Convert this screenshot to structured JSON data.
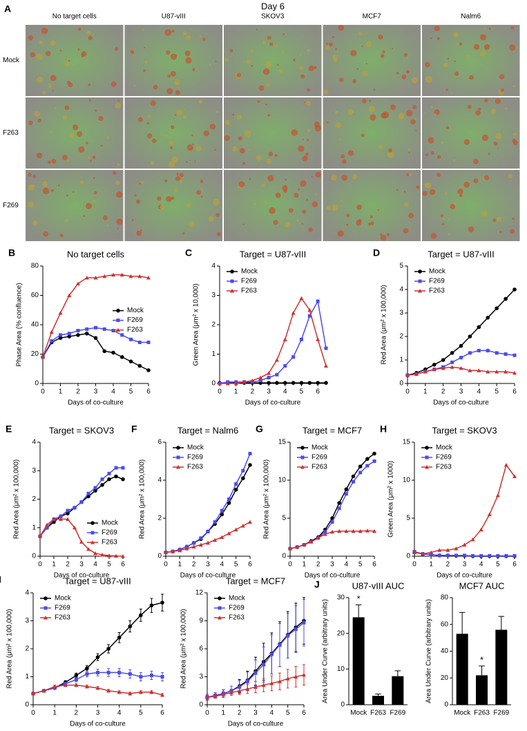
{
  "panel_a": {
    "panel_label": "A",
    "title": "Day 6",
    "columns": [
      "No target cells",
      "U87-vIII",
      "SKOV3",
      "MCF7",
      "Nalm6"
    ],
    "rows": [
      "Mock",
      "F263",
      "F269"
    ]
  },
  "chart_data": [
    {
      "type": "line",
      "panel_label": "B",
      "title": "No target cells",
      "xlabel": "Days of co-culture",
      "ylabel": "Phase Area (% confluence)",
      "x": [
        0,
        0.5,
        1,
        1.5,
        2,
        2.5,
        3,
        3.5,
        4,
        4.5,
        5,
        5.5,
        6
      ],
      "xlim": [
        0,
        6
      ],
      "xticks": [
        0,
        1,
        2,
        3,
        4,
        5,
        6
      ],
      "ylim": [
        0,
        80
      ],
      "yticks": [
        0,
        20,
        40,
        60,
        80
      ],
      "legend": "right",
      "series": [
        {
          "name": "Mock",
          "color": "#000000",
          "values": [
            18,
            28,
            31,
            32,
            33,
            34,
            31,
            22,
            21,
            18,
            15,
            12,
            9
          ]
        },
        {
          "name": "F269",
          "color": "#4b4bf0",
          "values": [
            18,
            29,
            33,
            34,
            36,
            37,
            38,
            37,
            36,
            33,
            30,
            28,
            28
          ]
        },
        {
          "name": "F263",
          "color": "#d03030",
          "values": [
            18,
            35,
            48,
            60,
            68,
            72,
            72,
            73,
            74,
            74,
            73,
            73,
            72
          ]
        }
      ]
    },
    {
      "type": "line",
      "panel_label": "C",
      "title": "Target = U87-vIII",
      "xlabel": "Days of co-culture",
      "ylabel": "Green Area (μm² x 10,000)",
      "x": [
        0,
        0.5,
        1,
        1.5,
        2,
        2.5,
        3,
        3.5,
        4,
        4.5,
        5,
        5.5,
        6,
        6.5
      ],
      "xlim": [
        0,
        6.5
      ],
      "xticks": [
        0,
        1,
        2,
        3,
        4,
        5,
        6
      ],
      "ylim": [
        0,
        4
      ],
      "yticks": [
        0,
        1,
        2,
        3,
        4
      ],
      "legend": "upper left",
      "series": [
        {
          "name": "Mock",
          "color": "#000000",
          "values": [
            0.02,
            0.02,
            0.02,
            0.02,
            0.02,
            0.02,
            0.02,
            0.02,
            0.02,
            0.02,
            0.02,
            0.02,
            0.02,
            0.02
          ]
        },
        {
          "name": "F269",
          "color": "#4b4bf0",
          "values": [
            0,
            0.05,
            0.05,
            0.05,
            0.05,
            0.1,
            0.2,
            0.3,
            0.6,
            0.9,
            1.5,
            2.3,
            2.8,
            1.2
          ]
        },
        {
          "name": "F263",
          "color": "#d03030",
          "values": [
            0,
            0,
            0,
            0.05,
            0.1,
            0.2,
            0.35,
            0.8,
            1.5,
            2.4,
            2.9,
            2.5,
            1.5,
            0.6
          ]
        }
      ]
    },
    {
      "type": "line",
      "panel_label": "D",
      "title": "Target = U87-vIII",
      "xlabel": "Days of co-culture",
      "ylabel": "Red Area (μm² x 100,000)",
      "x": [
        0,
        0.5,
        1,
        1.5,
        2,
        2.5,
        3,
        3.5,
        4,
        4.5,
        5,
        5.5,
        6
      ],
      "xlim": [
        0,
        6
      ],
      "xticks": [
        0,
        1,
        2,
        3,
        4,
        5,
        6
      ],
      "ylim": [
        0,
        5
      ],
      "yticks": [
        0,
        1,
        2,
        3,
        4,
        5
      ],
      "legend": "upper left",
      "series": [
        {
          "name": "Mock",
          "color": "#000000",
          "values": [
            0.35,
            0.45,
            0.6,
            0.8,
            1.0,
            1.3,
            1.6,
            2.0,
            2.4,
            2.8,
            3.2,
            3.6,
            4.0
          ]
        },
        {
          "name": "F269",
          "color": "#4b4bf0",
          "values": [
            0.35,
            0.4,
            0.5,
            0.6,
            0.7,
            0.9,
            1.1,
            1.3,
            1.4,
            1.4,
            1.3,
            1.25,
            1.2
          ]
        },
        {
          "name": "F263",
          "color": "#d03030",
          "values": [
            0.35,
            0.4,
            0.5,
            0.6,
            0.65,
            0.7,
            0.65,
            0.55,
            0.55,
            0.5,
            0.5,
            0.5,
            0.45
          ]
        }
      ]
    },
    {
      "type": "line",
      "panel_label": "E",
      "title": "Target = SKOV3",
      "xlabel": "Days of co-culture",
      "ylabel": "Red Area (μm² x 100,000)",
      "x": [
        0,
        0.5,
        1,
        1.5,
        2,
        2.5,
        3,
        3.5,
        4,
        4.5,
        5,
        5.5,
        6
      ],
      "xlim": [
        0,
        6
      ],
      "xticks": [
        0,
        1,
        2,
        3,
        4,
        5,
        6
      ],
      "ylim": [
        0,
        4
      ],
      "yticks": [
        0,
        1,
        2,
        3,
        4
      ],
      "legend": "lower right",
      "series": [
        {
          "name": "Mock",
          "color": "#000000",
          "values": [
            0.7,
            1.0,
            1.2,
            1.4,
            1.5,
            1.7,
            1.9,
            2.1,
            2.3,
            2.5,
            2.7,
            2.8,
            2.7
          ]
        },
        {
          "name": "F269",
          "color": "#4b4bf0",
          "values": [
            0.7,
            1.0,
            1.3,
            1.4,
            1.6,
            1.7,
            1.9,
            2.2,
            2.4,
            2.7,
            2.9,
            3.1,
            3.1
          ]
        },
        {
          "name": "F263",
          "color": "#d03030",
          "values": [
            0.7,
            1.1,
            1.3,
            1.3,
            1.3,
            1.0,
            0.5,
            0.25,
            0.1,
            0.05,
            0.02,
            0.01,
            0
          ]
        }
      ]
    },
    {
      "type": "line",
      "panel_label": "F",
      "title": "Target = Nalm6",
      "xlabel": "Days of co-culture",
      "ylabel": "Red Area (μm² x 100,000)",
      "x": [
        0,
        0.5,
        1,
        1.5,
        2,
        2.5,
        3,
        3.5,
        4,
        4.5,
        5,
        5.5,
        6
      ],
      "xlim": [
        0,
        6
      ],
      "xticks": [
        0,
        1,
        2,
        3,
        4,
        5,
        6
      ],
      "ylim": [
        0,
        6
      ],
      "yticks": [
        0,
        2,
        4,
        6
      ],
      "legend": "upper left",
      "series": [
        {
          "name": "Mock",
          "color": "#000000",
          "values": [
            0.2,
            0.25,
            0.35,
            0.5,
            0.7,
            0.9,
            1.3,
            1.7,
            2.2,
            2.8,
            3.5,
            4.1,
            4.8
          ]
        },
        {
          "name": "F269",
          "color": "#4b4bf0",
          "values": [
            0.2,
            0.25,
            0.35,
            0.5,
            0.7,
            0.95,
            1.3,
            1.8,
            2.4,
            3.0,
            3.8,
            4.5,
            5.4
          ]
        },
        {
          "name": "F263",
          "color": "#d03030",
          "values": [
            0.2,
            0.25,
            0.3,
            0.4,
            0.5,
            0.6,
            0.7,
            0.85,
            1.0,
            1.2,
            1.4,
            1.6,
            1.8
          ]
        }
      ]
    },
    {
      "type": "line",
      "panel_label": "G",
      "title": "Target = MCF7",
      "xlabel": "Days of co-culture",
      "ylabel": "Red Area (μm² x 100,000)",
      "x": [
        0,
        0.5,
        1,
        1.5,
        2,
        2.5,
        3,
        3.5,
        4,
        4.5,
        5,
        5.5,
        6
      ],
      "xlim": [
        0,
        6
      ],
      "xticks": [
        0,
        1,
        2,
        3,
        4,
        5,
        6
      ],
      "ylim": [
        0,
        15
      ],
      "yticks": [
        0,
        5,
        10,
        15
      ],
      "legend": "upper left",
      "series": [
        {
          "name": "Mock",
          "color": "#000000",
          "values": [
            1,
            1.2,
            1.5,
            2,
            2.5,
            3.5,
            5,
            7,
            8.8,
            10.5,
            11.8,
            12.8,
            13.5
          ]
        },
        {
          "name": "F269",
          "color": "#4b4bf0",
          "values": [
            1,
            1.2,
            1.5,
            1.9,
            2.4,
            3.2,
            4.5,
            6.3,
            8.2,
            9.8,
            11,
            11.9,
            12.5
          ]
        },
        {
          "name": "F263",
          "color": "#d03030",
          "values": [
            1,
            1.2,
            1.5,
            1.9,
            2.4,
            2.9,
            3.2,
            3.3,
            3.3,
            3.3,
            3.3,
            3.35,
            3.3
          ]
        }
      ]
    },
    {
      "type": "line",
      "panel_label": "H",
      "title": "Target = SKOV3",
      "xlabel": "Days of co-culture",
      "ylabel": "Green Area (μm² x 1000)",
      "x": [
        0,
        0.5,
        1,
        1.5,
        2,
        2.5,
        3,
        3.5,
        4,
        4.5,
        5,
        5.5,
        6
      ],
      "xlim": [
        0,
        6
      ],
      "xticks": [
        0,
        1,
        2,
        3,
        4,
        5,
        6
      ],
      "ylim": [
        0,
        15
      ],
      "yticks": [
        0,
        5,
        10,
        15
      ],
      "legend": "upper left",
      "series": [
        {
          "name": "Mock",
          "color": "#000000",
          "values": [
            0.5,
            0.3,
            0.2,
            0.1,
            0.1,
            0.05,
            0.05,
            0,
            0,
            0,
            0,
            0,
            0
          ]
        },
        {
          "name": "F269",
          "color": "#4b4bf0",
          "values": [
            0.6,
            0.3,
            0.2,
            0.1,
            0.1,
            0.1,
            0.1,
            0.05,
            0.05,
            0.05,
            0.05,
            0.05,
            0.05
          ]
        },
        {
          "name": "F263",
          "color": "#d03030",
          "values": [
            0.5,
            0.3,
            0.5,
            0.8,
            0.8,
            1.0,
            1.5,
            2.2,
            3.5,
            5.5,
            8,
            12,
            10.5
          ]
        }
      ]
    },
    {
      "type": "line",
      "panel_label": "I",
      "title": "Target = U87-vIII",
      "xlabel": "Days of co-culture",
      "ylabel": "Red Area (μm² x 100,000)",
      "x": [
        0,
        0.5,
        1,
        1.5,
        2,
        2.5,
        3,
        3.5,
        4,
        4.5,
        5,
        5.5,
        6
      ],
      "xlim": [
        0,
        6
      ],
      "xticks": [
        0,
        1,
        2,
        3,
        4,
        5,
        6
      ],
      "ylim": [
        0,
        4
      ],
      "yticks": [
        0,
        1,
        2,
        3,
        4
      ],
      "legend": "upper left",
      "series": [
        {
          "name": "Mock",
          "color": "#000000",
          "values": [
            0.4,
            0.5,
            0.6,
            0.8,
            1.05,
            1.3,
            1.7,
            2.0,
            2.4,
            2.8,
            3.2,
            3.55,
            3.65
          ],
          "errors": [
            0.03,
            0.03,
            0.04,
            0.06,
            0.08,
            0.1,
            0.12,
            0.15,
            0.18,
            0.2,
            0.22,
            0.25,
            0.3
          ]
        },
        {
          "name": "F269",
          "color": "#4b4bf0",
          "values": [
            0.4,
            0.5,
            0.6,
            0.75,
            0.9,
            1.1,
            1.15,
            1.15,
            1.15,
            1.1,
            1.0,
            1.05,
            1.0
          ],
          "errors": [
            0.03,
            0.03,
            0.05,
            0.06,
            0.08,
            0.1,
            0.12,
            0.14,
            0.15,
            0.15,
            0.15,
            0.15,
            0.15
          ]
        },
        {
          "name": "F263",
          "color": "#d03030",
          "values": [
            0.4,
            0.5,
            0.65,
            0.7,
            0.7,
            0.65,
            0.6,
            0.5,
            0.45,
            0.4,
            0.45,
            0.45,
            0.35
          ],
          "errors": [
            0.03,
            0.03,
            0.05,
            0.05,
            0.05,
            0.05,
            0.05,
            0.05,
            0.05,
            0.05,
            0.05,
            0.05,
            0.05
          ]
        }
      ]
    },
    {
      "type": "line",
      "title": "Target = MCF7",
      "xlabel": "Days of co-culture",
      "ylabel": "Red Area (μm² x 100,000)",
      "x": [
        0,
        0.5,
        1,
        1.5,
        2,
        2.5,
        3,
        3.5,
        4,
        4.5,
        5,
        5.5,
        6
      ],
      "xlim": [
        0,
        6
      ],
      "xticks": [
        0,
        1,
        2,
        3,
        4,
        5,
        6
      ],
      "ylim": [
        0,
        12
      ],
      "yticks": [
        0,
        3,
        6,
        9,
        12
      ],
      "legend": "upper left",
      "series": [
        {
          "name": "Mock",
          "color": "#000000",
          "values": [
            0.8,
            1,
            1.2,
            1.5,
            2,
            2.6,
            3.6,
            4.6,
            5.5,
            6.5,
            7.5,
            8.3,
            9
          ],
          "errors": [
            0.3,
            0.3,
            0.4,
            0.5,
            0.7,
            1,
            1.5,
            2,
            2.2,
            2.4,
            2.5,
            2.6,
            2.5
          ]
        },
        {
          "name": "F269",
          "color": "#4b4bf0",
          "values": [
            0.8,
            1,
            1.2,
            1.5,
            1.9,
            2.5,
            3.4,
            4.3,
            5.4,
            6.4,
            7.4,
            8.1,
            8.8
          ],
          "errors": [
            0.3,
            0.3,
            0.4,
            0.5,
            0.7,
            1,
            1.4,
            1.9,
            2.1,
            2.3,
            2.4,
            2.5,
            2.5
          ]
        },
        {
          "name": "F263",
          "color": "#d03030",
          "values": [
            0.8,
            0.9,
            1.1,
            1.3,
            1.5,
            1.7,
            1.9,
            2.1,
            2.3,
            2.5,
            2.8,
            3.0,
            3.2
          ],
          "errors": [
            0.2,
            0.2,
            0.3,
            0.3,
            0.4,
            0.5,
            0.6,
            0.7,
            0.8,
            0.9,
            1,
            1.1,
            1.1
          ]
        }
      ]
    },
    {
      "type": "bar",
      "panel_label": "J",
      "title": "U87-vIII AUC",
      "ylabel": "Area Under Curve (arbitrary units)",
      "categories": [
        "Mock",
        "F263",
        "F269"
      ],
      "values": [
        24.5,
        2.5,
        8
      ],
      "errors": [
        3.5,
        0.5,
        1.5
      ],
      "annotations": [
        "*",
        null,
        null
      ],
      "color": "#000000",
      "ylim": [
        0,
        30
      ],
      "yticks": [
        0,
        10,
        20,
        30
      ]
    },
    {
      "type": "bar",
      "title": "MCF7 AUC",
      "ylabel": "Area Under Curve (arbitrary units)",
      "categories": [
        "Mock",
        "F263",
        "F269"
      ],
      "values": [
        53,
        22,
        56
      ],
      "errors": [
        16,
        7,
        10
      ],
      "annotations": [
        null,
        "*",
        null
      ],
      "color": "#000000",
      "ylim": [
        0,
        80
      ],
      "yticks": [
        0,
        20,
        40,
        60,
        80
      ]
    }
  ]
}
